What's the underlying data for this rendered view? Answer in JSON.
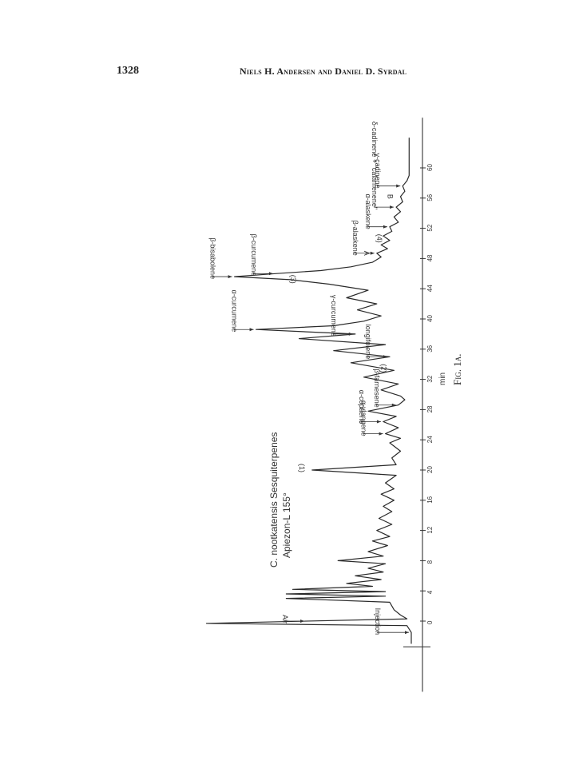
{
  "header": {
    "page_number": "1328",
    "running_head": "Niels H. Andersen and Daniel D. Syrdal"
  },
  "figure": {
    "caption": "Fig. 1a.",
    "axis_unit": "min",
    "legend_line1": "C. nootkatensis  Sesquiterpenes",
    "legend_line2": "Apiezon-L 155°"
  },
  "chart_data": {
    "type": "line",
    "title": "",
    "xlabel": "min",
    "ylabel": "",
    "x_ticks": [
      0,
      4,
      8,
      12,
      16,
      20,
      24,
      28,
      32,
      36,
      40,
      44,
      48,
      52,
      56,
      60
    ],
    "x_range": [
      -3,
      64
    ],
    "series": [
      {
        "name": "",
        "x": [
          -3,
          -1.5,
          -0.6,
          -0.3,
          0.3,
          0.8,
          1.5,
          2.5,
          3.0,
          3.3,
          3.6,
          3.9,
          4.2,
          4.6,
          5.0,
          5.5,
          6.0,
          6.5,
          7.0,
          7.6,
          8.0,
          8.6,
          9.2,
          10,
          10.6,
          11.2,
          12,
          12.8,
          13.6,
          14.5,
          15.2,
          16,
          16.8,
          17.5,
          18.3,
          19.3,
          20,
          20.7,
          21.6,
          22.5,
          23.6,
          24.2,
          24.8,
          25.6,
          26.4,
          27.1,
          27.8,
          28.6,
          29.3,
          29.8,
          30.6,
          31.4,
          32.3,
          33.2,
          34.2,
          35.0,
          35.8,
          36.6,
          37.4,
          38.0,
          38.6,
          39.1,
          39.7,
          40.4,
          41.2,
          42.0,
          42.8,
          43.8,
          44.6,
          45.2,
          45.6,
          46.0,
          46.4,
          46.9,
          47.5,
          48.2,
          48.7,
          49.3,
          49.8,
          50.4,
          51.0,
          51.6,
          52.2,
          52.8,
          53.5,
          54.2,
          54.8,
          55.5,
          56.2,
          56.9,
          57.6,
          58.3,
          59.0,
          60,
          62,
          64
        ],
        "y": [
          0,
          0,
          0.02,
          0.95,
          0.02,
          0.05,
          0.08,
          0.1,
          0.58,
          0.12,
          0.58,
          0.12,
          0.55,
          0.18,
          0.3,
          0.14,
          0.26,
          0.13,
          0.2,
          0.12,
          0.34,
          0.13,
          0.2,
          0.11,
          0.18,
          0.1,
          0.16,
          0.09,
          0.15,
          0.09,
          0.13,
          0.08,
          0.14,
          0.08,
          0.12,
          0.07,
          0.46,
          0.07,
          0.09,
          0.05,
          0.1,
          0.05,
          0.12,
          0.06,
          0.13,
          0.07,
          0.2,
          0.06,
          0.03,
          0.05,
          0.14,
          0.06,
          0.22,
          0.08,
          0.28,
          0.1,
          0.36,
          0.12,
          0.52,
          0.26,
          0.72,
          0.36,
          0.22,
          0.14,
          0.25,
          0.16,
          0.3,
          0.2,
          0.38,
          0.56,
          0.82,
          0.63,
          0.42,
          0.28,
          0.18,
          0.14,
          0.16,
          0.11,
          0.14,
          0.1,
          0.13,
          0.09,
          0.1,
          0.06,
          0.08,
          0.05,
          0.07,
          0.04,
          0.05,
          0.03,
          0.04,
          0.02,
          0.01,
          0.01,
          0.01,
          0.01
        ]
      }
    ],
    "annotations": [
      {
        "label": "Injection",
        "x": -1.5
      },
      {
        "label": "Air",
        "x": 0
      },
      {
        "label": "(1)",
        "x": 20
      },
      {
        "label": "α-ylangene",
        "x": 24.8
      },
      {
        "label": "α-copaene",
        "x": 26.4
      },
      {
        "label": "β-farnesene",
        "x": 28.6
      },
      {
        "label": "(2)",
        "x": 33.2
      },
      {
        "label": "longifolene",
        "x": 35.0
      },
      {
        "label": "γ-curcumene",
        "x": 38.0
      },
      {
        "label": "α-curcumene",
        "x": 38.6
      },
      {
        "label": "(3)",
        "x": 45.0
      },
      {
        "label": "β-bisabolene",
        "x": 45.6
      },
      {
        "label": "β-curcumene",
        "x": 46.0
      },
      {
        "label": "β-alaskene",
        "x": 48.7
      },
      {
        "label": "A",
        "x": 48.7
      },
      {
        "label": "(4)",
        "x": 50.4
      },
      {
        "label": "α-alaskene",
        "x": 52.2
      },
      {
        "label": "δ-cadinene + \"calamenene\"",
        "x": 54.8
      },
      {
        "label": "B",
        "x": 56.2
      },
      {
        "label": "γ-cadinene",
        "x": 57.6
      }
    ]
  }
}
